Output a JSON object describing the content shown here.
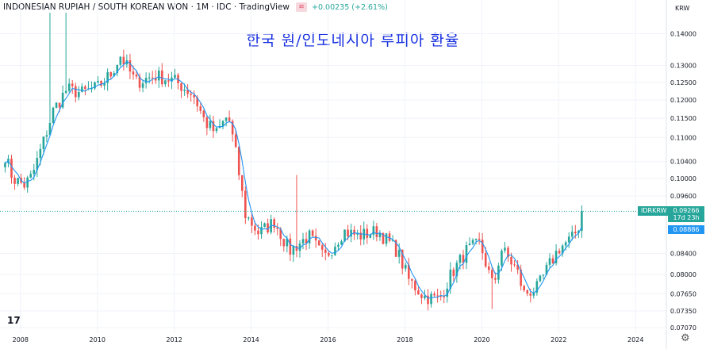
{
  "header": {
    "pair_title": "INDONESIAN RUPIAH / SOUTH KOREAN WON · 1M · IDC · TradingView",
    "indicator_icon": "wave-icon",
    "change_text": "+0.00235 (+2.61%)"
  },
  "chart_title": "한국 원/인도네시아 루피아 환율",
  "currency_label": "KRW",
  "symbol_tag": "IDRKRW",
  "last_price_label": "0.09266",
  "countdown_label": "17d 23h",
  "ma_price_label": "0.08886",
  "logo_text": "17",
  "colors": {
    "up": "#26a69a",
    "down": "#ef5350",
    "ma": "#2196f3",
    "title": "#1a32e0"
  },
  "chart_data": {
    "type": "candlestick",
    "y_scale": "log",
    "ylim": [
      0.0698,
      0.147
    ],
    "xlim": [
      2007.55,
      2024.8
    ],
    "grid": true,
    "ytick_labels": [
      "0.14000",
      "0.13000",
      "0.12500",
      "0.12000",
      "0.11500",
      "0.11000",
      "0.10400",
      "0.10000",
      "0.09600",
      "0.08400",
      "0.08000",
      "0.07650",
      "0.07350",
      "0.07070"
    ],
    "xtick_labels": [
      "2008",
      "2010",
      "2012",
      "2014",
      "2016",
      "2018",
      "2020",
      "2022",
      "2024"
    ],
    "anchors": [
      [
        2007.6,
        0.1055
      ],
      [
        2007.8,
        0.1
      ],
      [
        2008.1,
        0.0985
      ],
      [
        2008.3,
        0.1005
      ],
      [
        2008.6,
        0.109
      ],
      [
        2008.85,
        0.117
      ],
      [
        2009.2,
        0.123
      ],
      [
        2009.6,
        0.122
      ],
      [
        2010.0,
        0.1235
      ],
      [
        2010.35,
        0.1275
      ],
      [
        2010.6,
        0.133
      ],
      [
        2011.0,
        0.125
      ],
      [
        2011.5,
        0.127
      ],
      [
        2012.0,
        0.1255
      ],
      [
        2012.5,
        0.1215
      ],
      [
        2012.8,
        0.114
      ],
      [
        2013.1,
        0.111
      ],
      [
        2013.4,
        0.116
      ],
      [
        2013.6,
        0.106
      ],
      [
        2013.85,
        0.092
      ],
      [
        2014.2,
        0.088
      ],
      [
        2014.6,
        0.0905
      ],
      [
        2015.0,
        0.0845
      ],
      [
        2015.5,
        0.0875
      ],
      [
        2015.9,
        0.083
      ],
      [
        2016.4,
        0.0885
      ],
      [
        2016.8,
        0.0875
      ],
      [
        2017.3,
        0.0885
      ],
      [
        2017.8,
        0.0845
      ],
      [
        2018.1,
        0.079
      ],
      [
        2018.5,
        0.076
      ],
      [
        2018.9,
        0.0755
      ],
      [
        2019.2,
        0.08
      ],
      [
        2019.6,
        0.0845
      ],
      [
        2019.95,
        0.086
      ],
      [
        2020.15,
        0.081
      ],
      [
        2020.3,
        0.0775
      ],
      [
        2020.5,
        0.085
      ],
      [
        2020.9,
        0.081
      ],
      [
        2021.1,
        0.0765
      ],
      [
        2021.45,
        0.0775
      ],
      [
        2021.7,
        0.081
      ],
      [
        2022.0,
        0.085
      ],
      [
        2022.35,
        0.087
      ],
      [
        2022.5,
        0.089
      ],
      [
        2022.62,
        0.0927
      ]
    ]
  }
}
